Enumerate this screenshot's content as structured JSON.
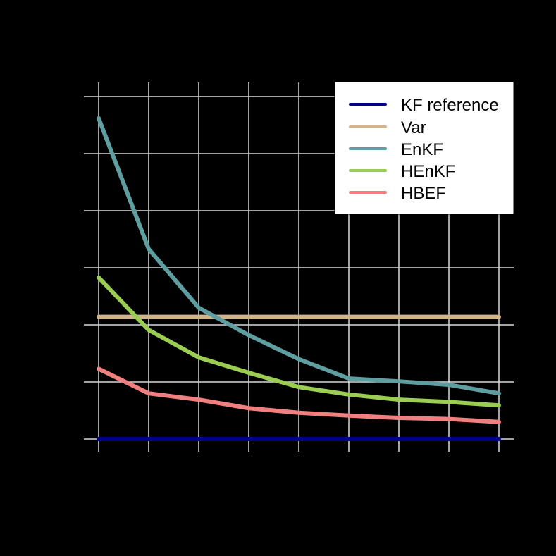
{
  "chart_data": {
    "type": "line",
    "title": "",
    "xlabel": "",
    "ylabel": "",
    "background": "#000000",
    "grid": true,
    "grid_color": "#d9d9d9",
    "x": [
      1,
      2,
      3,
      4,
      5,
      6,
      7,
      8,
      9
    ],
    "xlim": [
      0.7,
      9.3
    ],
    "ylim": [
      -0.23,
      6.24
    ],
    "y_gridlines": [
      0,
      1,
      2,
      3,
      4,
      5,
      6
    ],
    "note": "Axis tick labels and axis titles are rendered in black on a black background and are not legible; values are in gridline units (KF reference line = 0, one unit per horizontal gridline).",
    "legend": {
      "position": "top-right",
      "entries": [
        "KF reference",
        "Var",
        "EnKF",
        "HEnKF",
        "HBEF"
      ]
    },
    "series": [
      {
        "name": "KF reference",
        "color": "#00008b",
        "values": [
          0,
          0,
          0,
          0,
          0,
          0,
          0,
          0,
          0
        ]
      },
      {
        "name": "Var",
        "color": "#d2b48c",
        "values": [
          2.14,
          2.14,
          2.14,
          2.14,
          2.14,
          2.14,
          2.14,
          2.14,
          2.14
        ]
      },
      {
        "name": "EnKF",
        "color": "#5f9ea0",
        "values": [
          5.62,
          3.33,
          2.3,
          1.82,
          1.4,
          1.06,
          1.01,
          0.95,
          0.8
        ]
      },
      {
        "name": "HEnKF",
        "color": "#9acd52",
        "values": [
          2.83,
          1.91,
          1.43,
          1.16,
          0.91,
          0.78,
          0.69,
          0.65,
          0.59
        ]
      },
      {
        "name": "HBEF",
        "color": "#f08080",
        "values": [
          1.23,
          0.8,
          0.69,
          0.54,
          0.46,
          0.41,
          0.37,
          0.35,
          0.3
        ]
      }
    ]
  }
}
